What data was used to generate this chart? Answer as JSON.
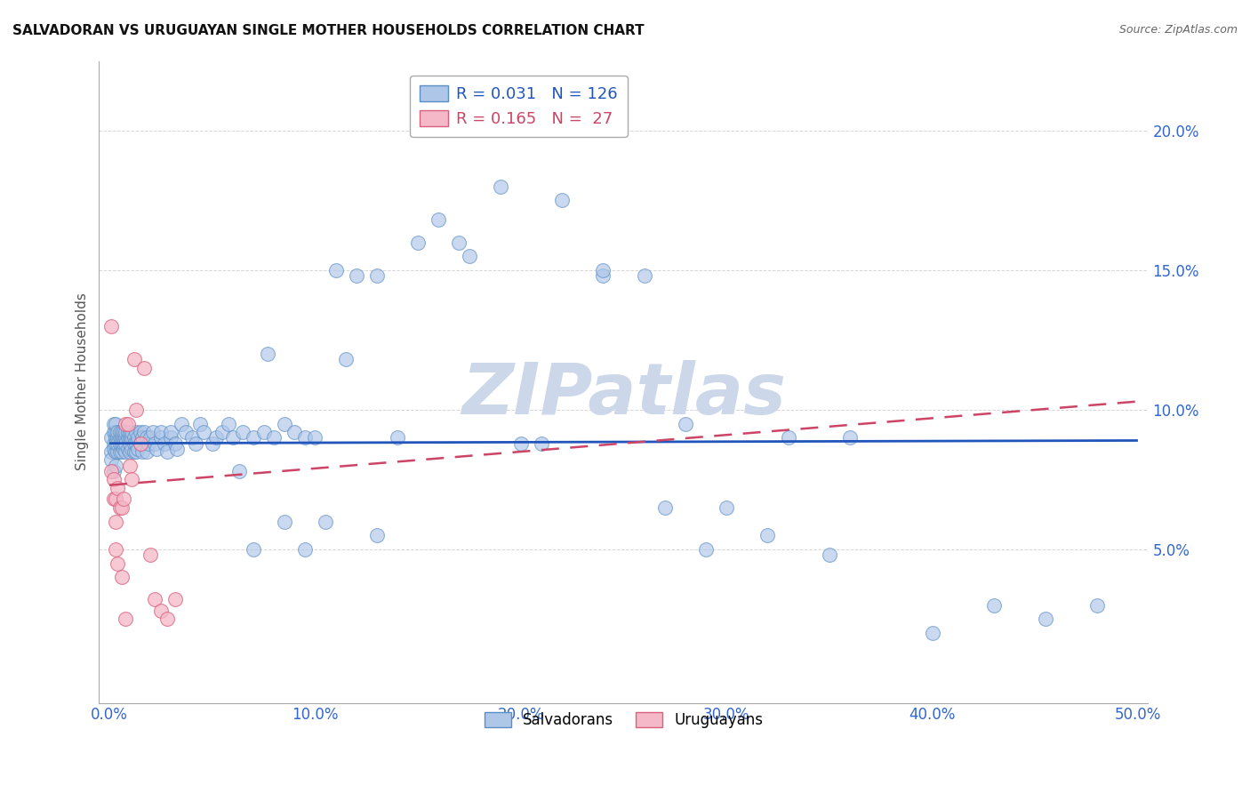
{
  "title": "SALVADORAN VS URUGUAYAN SINGLE MOTHER HOUSEHOLDS CORRELATION CHART",
  "source": "Source: ZipAtlas.com",
  "ylabel": "Single Mother Households",
  "xlim": [
    -0.005,
    0.505
  ],
  "ylim": [
    -0.005,
    0.225
  ],
  "xtick_vals": [
    0.0,
    0.1,
    0.2,
    0.3,
    0.4,
    0.5
  ],
  "xtick_labels": [
    "0.0%",
    "10.0%",
    "20.0%",
    "30.0%",
    "40.0%",
    "50.0%"
  ],
  "ytick_vals": [
    0.05,
    0.1,
    0.15,
    0.2
  ],
  "ytick_labels": [
    "5.0%",
    "10.0%",
    "15.0%",
    "20.0%"
  ],
  "salvadoran_color": "#aec6e8",
  "salvadoran_edge": "#5b8ec4",
  "uruguayan_color": "#f4b8c8",
  "uruguayan_edge": "#d9607c",
  "trendline_salv_color": "#2255bb",
  "trendline_urug_color": "#cc4466",
  "watermark": "ZIPatlas",
  "watermark_color": "#ccd8ea",
  "grid_color": "#cccccc",
  "axis_color": "#3366cc",
  "title_color": "#111111",
  "source_color": "#666666",
  "ylabel_color": "#555555",
  "R_salv": 0.031,
  "N_salv": 126,
  "R_urug": 0.165,
  "N_urug": 27,
  "salv_x": [
    0.001,
    0.001,
    0.001,
    0.002,
    0.002,
    0.002,
    0.002,
    0.002,
    0.003,
    0.003,
    0.003,
    0.003,
    0.003,
    0.003,
    0.004,
    0.004,
    0.004,
    0.004,
    0.005,
    0.005,
    0.005,
    0.005,
    0.006,
    0.006,
    0.006,
    0.006,
    0.007,
    0.007,
    0.007,
    0.007,
    0.008,
    0.008,
    0.008,
    0.008,
    0.009,
    0.009,
    0.009,
    0.01,
    0.01,
    0.01,
    0.01,
    0.011,
    0.011,
    0.011,
    0.012,
    0.012,
    0.012,
    0.013,
    0.013,
    0.013,
    0.014,
    0.014,
    0.015,
    0.015,
    0.016,
    0.016,
    0.017,
    0.018,
    0.018,
    0.019,
    0.02,
    0.021,
    0.022,
    0.023,
    0.025,
    0.025,
    0.027,
    0.028,
    0.03,
    0.03,
    0.032,
    0.033,
    0.035,
    0.037,
    0.04,
    0.042,
    0.044,
    0.046,
    0.05,
    0.052,
    0.055,
    0.058,
    0.06,
    0.065,
    0.07,
    0.075,
    0.08,
    0.085,
    0.09,
    0.095,
    0.1,
    0.11,
    0.12,
    0.13,
    0.14,
    0.16,
    0.175,
    0.2,
    0.22,
    0.24,
    0.27,
    0.3,
    0.33,
    0.36,
    0.4,
    0.43,
    0.455,
    0.48,
    0.24,
    0.26,
    0.29,
    0.32,
    0.35,
    0.28,
    0.17,
    0.19,
    0.21,
    0.15,
    0.13,
    0.115,
    0.105,
    0.095,
    0.085,
    0.077,
    0.07,
    0.063
  ],
  "salv_y": [
    0.085,
    0.09,
    0.082,
    0.088,
    0.092,
    0.086,
    0.095,
    0.078,
    0.09,
    0.085,
    0.092,
    0.08,
    0.088,
    0.095,
    0.09,
    0.085,
    0.092,
    0.088,
    0.09,
    0.085,
    0.092,
    0.088,
    0.09,
    0.092,
    0.085,
    0.088,
    0.09,
    0.086,
    0.092,
    0.088,
    0.09,
    0.085,
    0.092,
    0.088,
    0.09,
    0.086,
    0.092,
    0.09,
    0.085,
    0.092,
    0.088,
    0.09,
    0.086,
    0.092,
    0.09,
    0.085,
    0.088,
    0.092,
    0.088,
    0.085,
    0.09,
    0.086,
    0.092,
    0.088,
    0.09,
    0.085,
    0.092,
    0.09,
    0.085,
    0.088,
    0.09,
    0.092,
    0.088,
    0.086,
    0.09,
    0.092,
    0.088,
    0.085,
    0.09,
    0.092,
    0.088,
    0.086,
    0.095,
    0.092,
    0.09,
    0.088,
    0.095,
    0.092,
    0.088,
    0.09,
    0.092,
    0.095,
    0.09,
    0.092,
    0.09,
    0.092,
    0.09,
    0.095,
    0.092,
    0.09,
    0.09,
    0.15,
    0.148,
    0.148,
    0.09,
    0.168,
    0.155,
    0.088,
    0.175,
    0.148,
    0.065,
    0.065,
    0.09,
    0.09,
    0.02,
    0.03,
    0.025,
    0.03,
    0.15,
    0.148,
    0.05,
    0.055,
    0.048,
    0.095,
    0.16,
    0.18,
    0.088,
    0.16,
    0.055,
    0.118,
    0.06,
    0.05,
    0.06,
    0.12,
    0.05,
    0.078
  ],
  "urug_x": [
    0.001,
    0.001,
    0.002,
    0.002,
    0.003,
    0.003,
    0.004,
    0.005,
    0.006,
    0.007,
    0.008,
    0.009,
    0.01,
    0.011,
    0.012,
    0.013,
    0.015,
    0.017,
    0.02,
    0.022,
    0.025,
    0.028,
    0.032,
    0.008,
    0.003,
    0.004,
    0.006
  ],
  "urug_y": [
    0.13,
    0.078,
    0.068,
    0.075,
    0.068,
    0.06,
    0.072,
    0.065,
    0.065,
    0.068,
    0.095,
    0.095,
    0.08,
    0.075,
    0.118,
    0.1,
    0.088,
    0.115,
    0.048,
    0.032,
    0.028,
    0.025,
    0.032,
    0.025,
    0.05,
    0.045,
    0.04
  ]
}
